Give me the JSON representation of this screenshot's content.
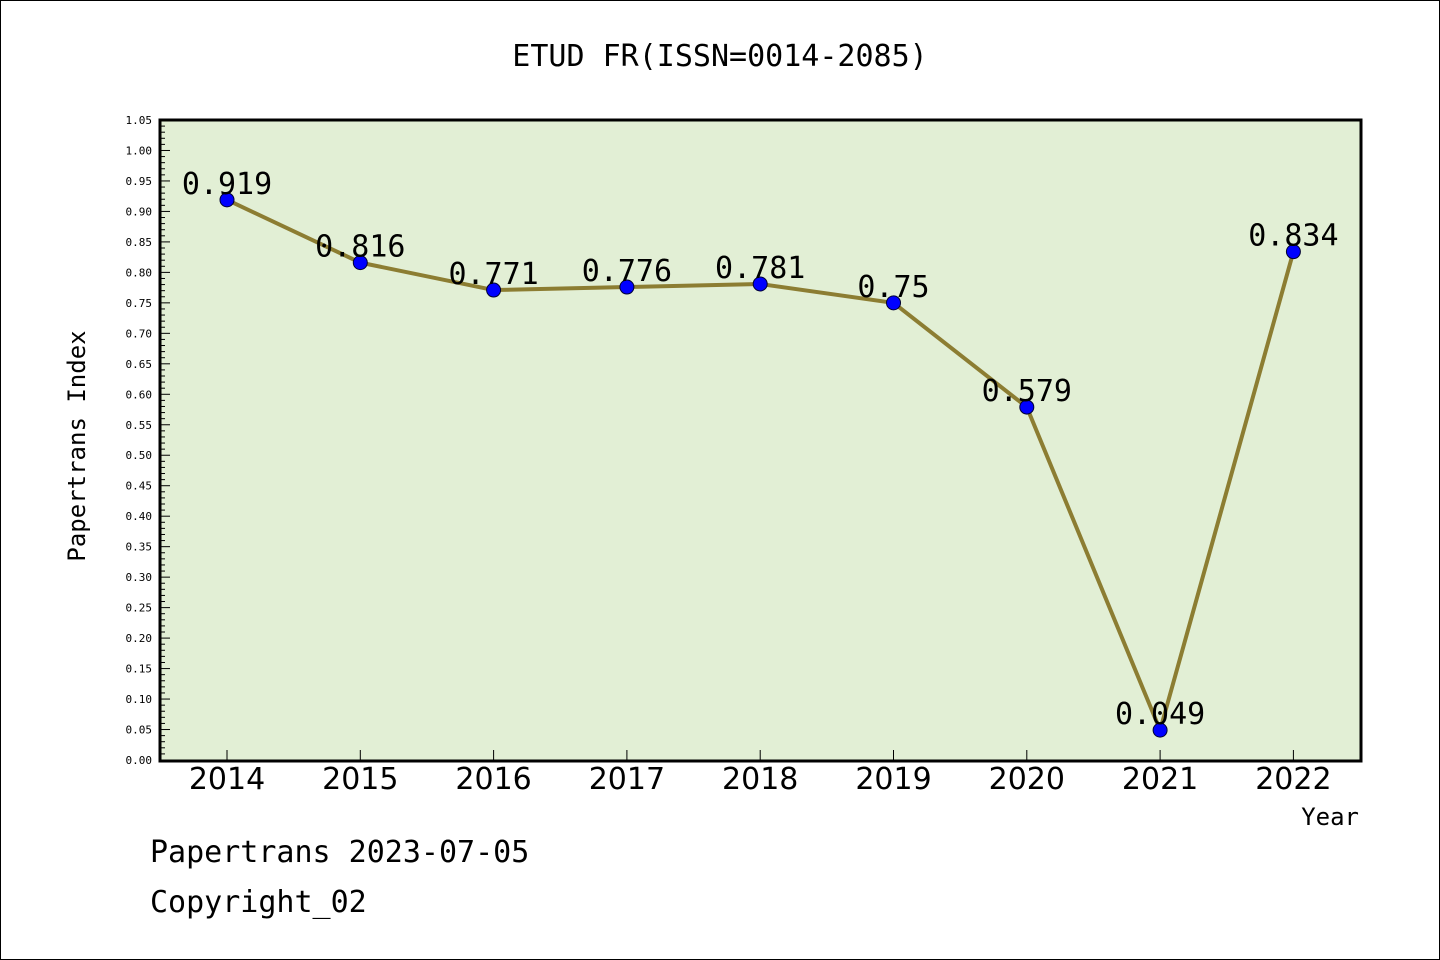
{
  "chart_data": {
    "type": "line",
    "title": "ETUD FR(ISSN=0014-2085)",
    "xlabel": "Year",
    "ylabel": "Papertrans Index",
    "categories": [
      "2014",
      "2015",
      "2016",
      "2017",
      "2018",
      "2019",
      "2020",
      "2021",
      "2022"
    ],
    "values": [
      0.919,
      0.816,
      0.771,
      0.776,
      0.781,
      0.75,
      0.579,
      0.049,
      0.834
    ],
    "data_labels": [
      "0.919",
      "0.816",
      "0.771",
      "0.776",
      "0.781",
      "0.75",
      "0.579",
      "0.049",
      "0.834"
    ],
    "ylim": [
      0,
      1.05
    ],
    "ytick_step": 0.05,
    "yticks": [
      "0.00",
      "0.05",
      "0.10",
      "0.15",
      "0.20",
      "0.25",
      "0.30",
      "0.35",
      "0.40",
      "0.45",
      "0.50",
      "0.55",
      "0.60",
      "0.65",
      "0.70",
      "0.75",
      "0.80",
      "0.85",
      "0.90",
      "0.95",
      "1.00",
      "1.05"
    ],
    "grid": false,
    "colors": {
      "plot_background": "#e2efd5",
      "line": "#8c7d32",
      "marker": "#0000ff"
    }
  },
  "footer": {
    "line1": "Papertrans 2023-07-05",
    "line2": "Copyright_02"
  }
}
